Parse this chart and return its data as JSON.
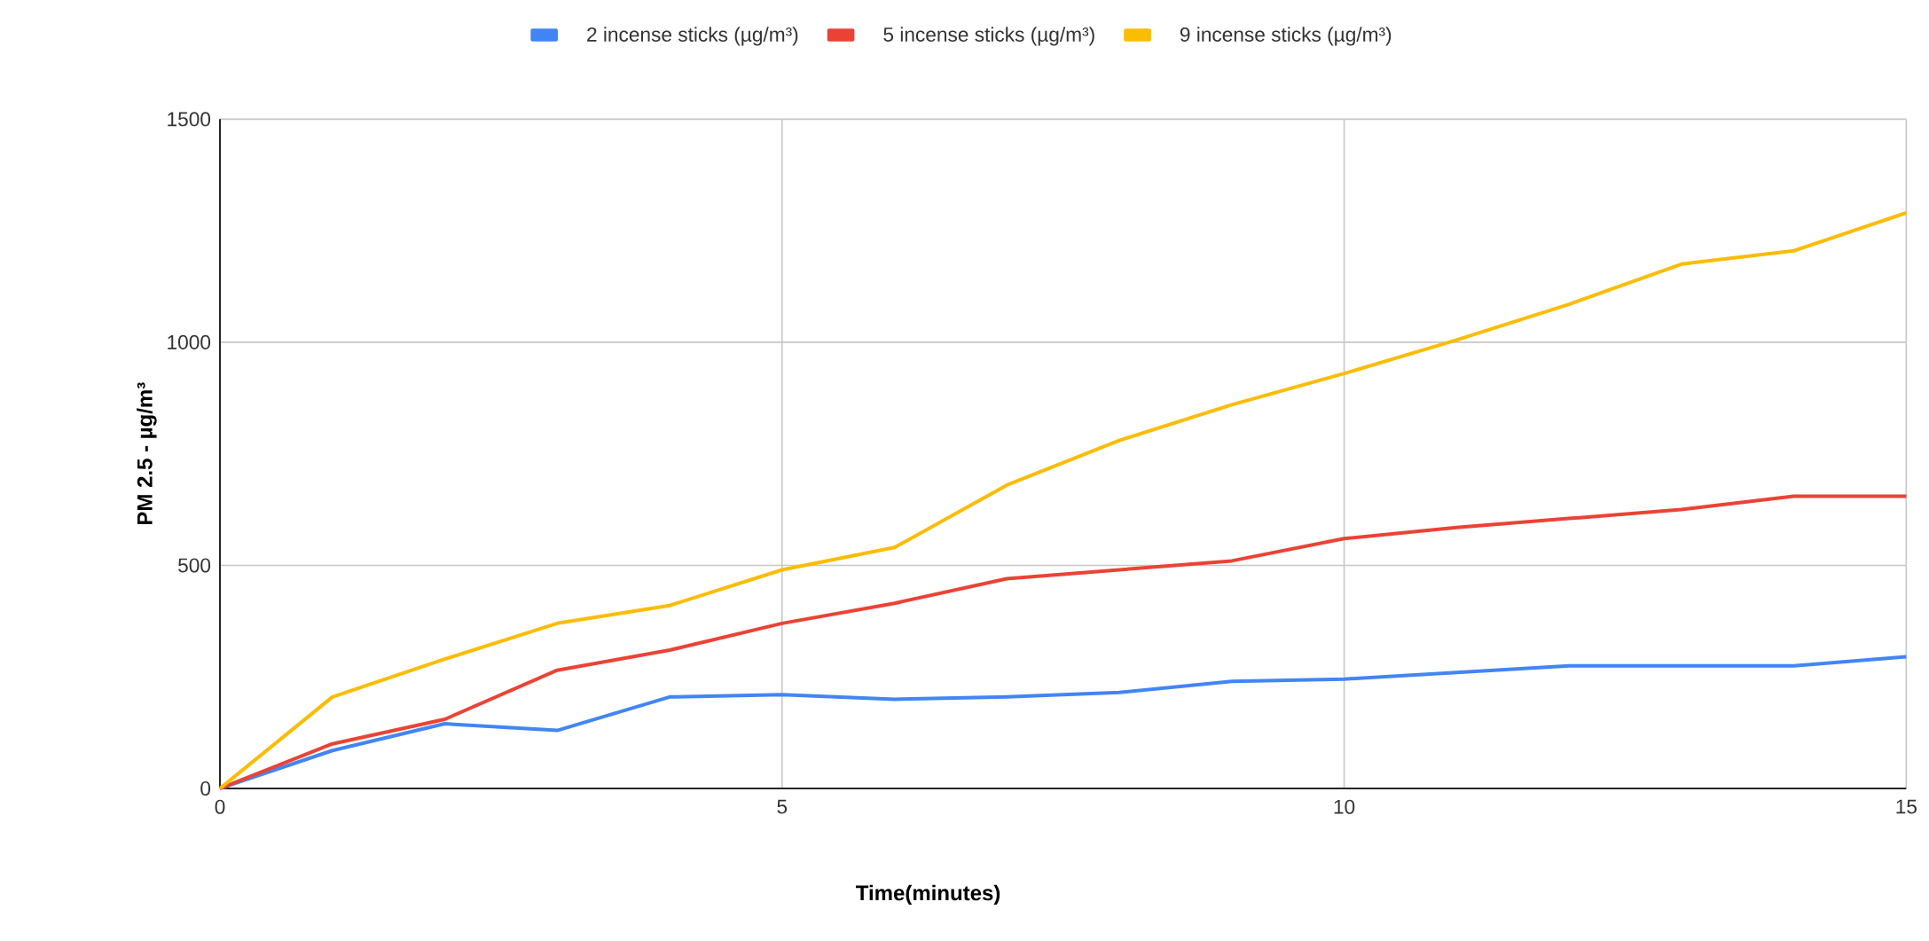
{
  "chart_data": {
    "type": "line",
    "xlabel": "**Time(minutes)**",
    "ylabel": "**PM 2.5 - µg/m³**",
    "x": [
      0,
      1,
      2,
      3,
      4,
      5,
      6,
      7,
      8,
      9,
      10,
      11,
      12,
      13,
      14,
      15
    ],
    "series": [
      {
        "name": "2 incense sticks (µg/m³)",
        "color": "#4285f4",
        "values": [
          0,
          85,
          145,
          130,
          205,
          210,
          200,
          205,
          215,
          240,
          245,
          260,
          275,
          275,
          275,
          295
        ]
      },
      {
        "name": "5 incense sticks (µg/m³)",
        "color": "#ea4335",
        "values": [
          0,
          100,
          155,
          265,
          310,
          370,
          415,
          470,
          490,
          510,
          560,
          585,
          605,
          625,
          655,
          655
        ]
      },
      {
        "name": "9 incense sticks (µg/m³)",
        "color": "#fbbc04",
        "values": [
          0,
          205,
          290,
          370,
          410,
          490,
          540,
          680,
          780,
          860,
          930,
          1005,
          1085,
          1175,
          1205,
          1290
        ]
      }
    ],
    "xlim": [
      0,
      15
    ],
    "xticks": [
      0,
      5,
      10,
      15
    ],
    "ylim": [
      0,
      1500
    ],
    "yticks": [
      0,
      500,
      1000,
      1500
    ],
    "grid": true,
    "legend": "top",
    "marker": "none",
    "line_style": "solid"
  }
}
